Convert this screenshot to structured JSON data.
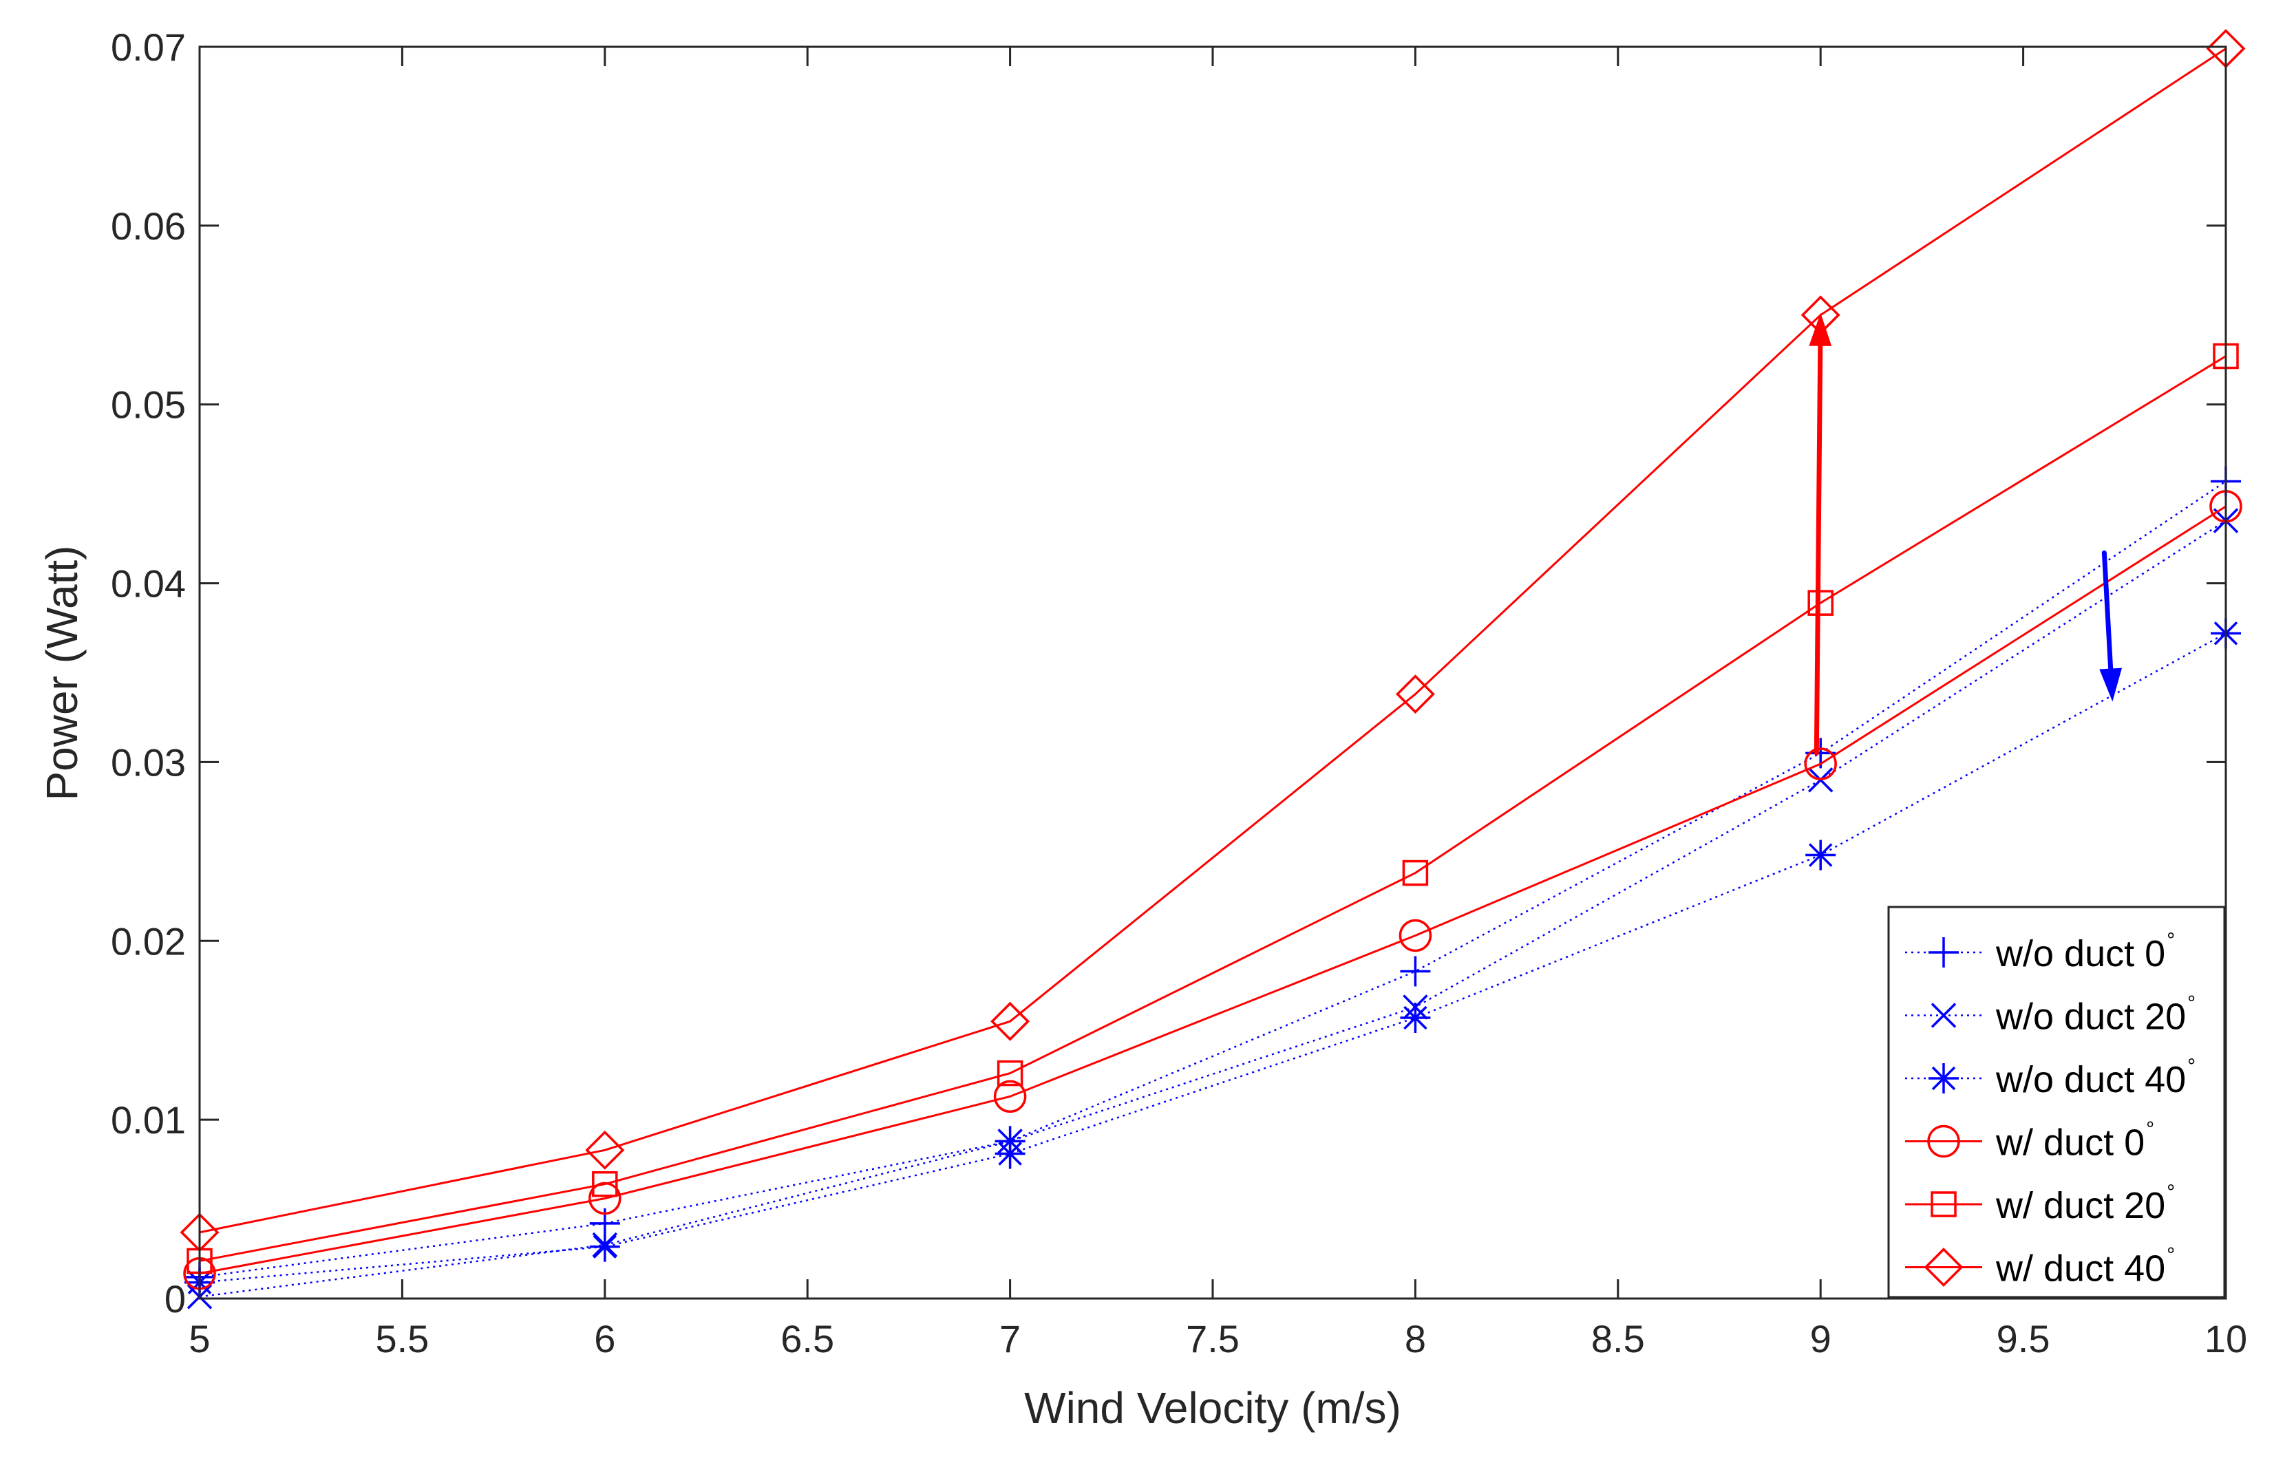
{
  "chart_data": {
    "type": "line",
    "title": "",
    "xlabel": "Wind Velocity (m/s)",
    "ylabel": "Power (Watt)",
    "xlim": [
      5,
      10
    ],
    "ylim": [
      0,
      0.07
    ],
    "x": [
      5,
      6,
      7,
      8,
      9,
      10
    ],
    "xticks": [
      5,
      5.5,
      6,
      6.5,
      7,
      7.5,
      8,
      8.5,
      9,
      9.5,
      10
    ],
    "xtick_labels": [
      "5",
      "5.5",
      "6",
      "6.5",
      "7",
      "7.5",
      "8",
      "8.5",
      "9",
      "9.5",
      "10"
    ],
    "yticks": [
      0,
      0.01,
      0.02,
      0.03,
      0.04,
      0.05,
      0.06,
      0.07
    ],
    "ytick_labels": [
      "0",
      "0.01",
      "0.02",
      "0.03",
      "0.04",
      "0.05",
      "0.06",
      "0.07"
    ],
    "grid": false,
    "legend_position": "bottom-right",
    "series": [
      {
        "name": "w/o duct 0",
        "degree_symbol": "°",
        "color": "#0000ff",
        "line_style": "dotted",
        "marker": "plus",
        "values": [
          0.0012,
          0.0042,
          0.0088,
          0.0183,
          0.0305,
          0.0457
        ]
      },
      {
        "name": "w/o duct 20",
        "degree_symbol": "°",
        "color": "#0000ff",
        "line_style": "dotted",
        "marker": "x",
        "values": [
          0.0001,
          0.003,
          0.0088,
          0.0163,
          0.029,
          0.0435
        ]
      },
      {
        "name": "w/o duct 40",
        "degree_symbol": "°",
        "color": "#0000ff",
        "line_style": "dotted",
        "marker": "asterisk",
        "values": [
          0.0009,
          0.0029,
          0.0081,
          0.0157,
          0.0248,
          0.0372
        ]
      },
      {
        "name": "w/ duct 0",
        "degree_symbol": "°",
        "color": "#ff0000",
        "line_style": "solid",
        "marker": "circle",
        "values": [
          0.0014,
          0.0056,
          0.0113,
          0.0203,
          0.0299,
          0.0443
        ]
      },
      {
        "name": "w/ duct 20",
        "degree_symbol": "°",
        "color": "#ff0000",
        "line_style": "solid",
        "marker": "square",
        "values": [
          0.0021,
          0.0064,
          0.0126,
          0.0238,
          0.0389,
          0.0527
        ]
      },
      {
        "name": "w/ duct 40",
        "degree_symbol": "°",
        "color": "#ff0000",
        "line_style": "solid",
        "marker": "diamond",
        "values": [
          0.0037,
          0.0083,
          0.0155,
          0.0338,
          0.055,
          0.0699
        ]
      }
    ],
    "annotations": [
      {
        "type": "arrow",
        "color": "#ff0000",
        "from": [
          8.99,
          0.0305
        ],
        "to": [
          9.0,
          0.055
        ]
      },
      {
        "type": "arrow",
        "color": "#0000ff",
        "from": [
          9.7,
          0.0417
        ],
        "to": [
          9.72,
          0.0335
        ]
      }
    ]
  }
}
